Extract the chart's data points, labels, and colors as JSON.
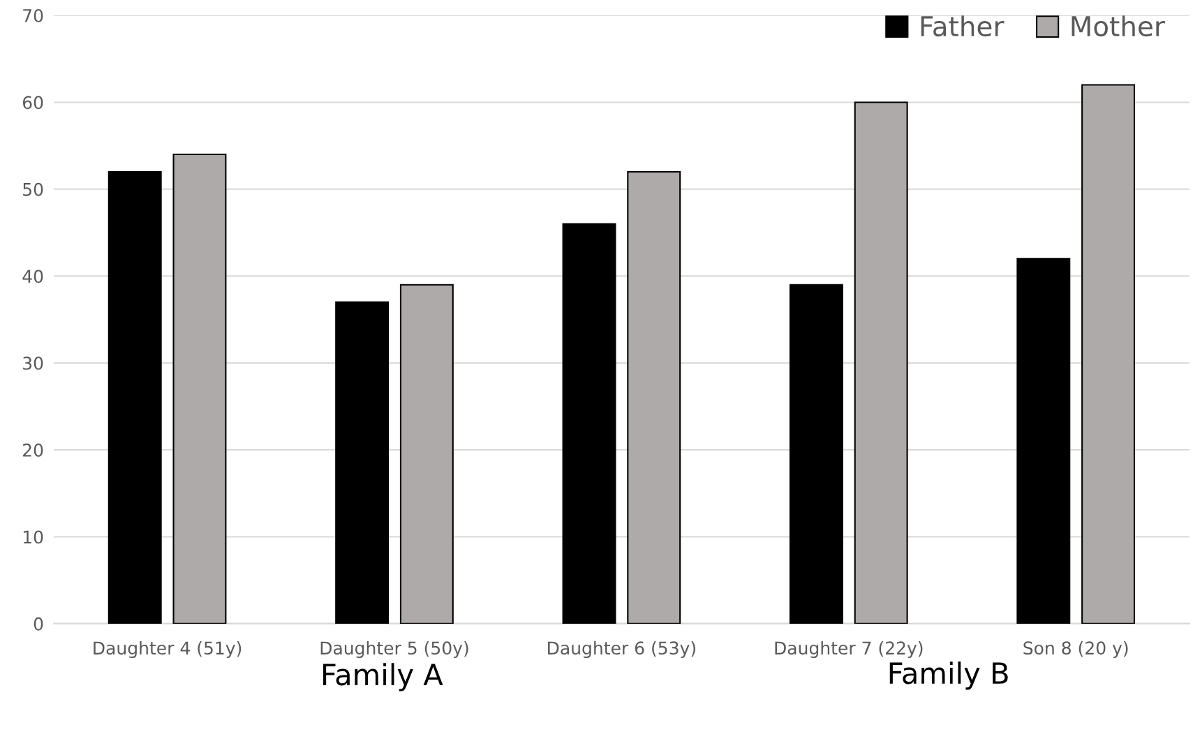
{
  "chart_data": {
    "type": "bar",
    "categories": [
      "Daughter 4 (51y)",
      "Daughter 5 (50y)",
      "Daughter 6 (53y)",
      "Daughter 7 (22y)",
      "Son 8 (20 y)"
    ],
    "series": [
      {
        "name": "Father",
        "color": "#000000",
        "values": [
          52,
          37,
          46,
          39,
          42
        ]
      },
      {
        "name": "Mother",
        "color": "#aeaaaa",
        "values": [
          54,
          39,
          52,
          60,
          62
        ]
      }
    ],
    "ylim": [
      0,
      70
    ],
    "yticks": [
      0,
      10,
      20,
      30,
      40,
      50,
      60,
      70
    ],
    "grid": "y",
    "legend": "top right",
    "annotations": [
      "Family A",
      "Family B"
    ]
  }
}
